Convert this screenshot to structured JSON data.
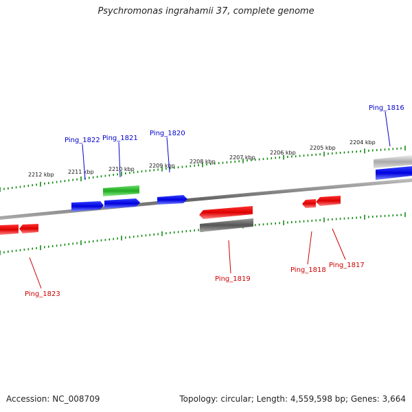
{
  "title": "Psychromonas ingrahamii 37, complete genome",
  "footer": {
    "accession": "Accession: NC_008709",
    "summary": "Topology: circular; Length: 4,559,598 bp; Genes: 3,664"
  },
  "colors": {
    "forward_gene": "#0000dd",
    "reverse_gene": "#ee0000",
    "rna_gene": "#33bb33",
    "other_feature": "#666666",
    "tick": "#118811",
    "backbone": "#888888"
  },
  "scale_labels": [
    "2212 kbp",
    "2211 kbp",
    "2210 kbp",
    "2209 kbp",
    "2208 kbp",
    "2207 kbp",
    "2206 kbp",
    "2205 kbp",
    "2204 kbp"
  ],
  "gene_labels": [
    {
      "text": "Ping_1816",
      "strand": "forward"
    },
    {
      "text": "Ping_1817",
      "strand": "reverse"
    },
    {
      "text": "Ping_1818",
      "strand": "reverse"
    },
    {
      "text": "Ping_1819",
      "strand": "reverse"
    },
    {
      "text": "Ping_1820",
      "strand": "forward"
    },
    {
      "text": "Ping_1821",
      "strand": "forward"
    },
    {
      "text": "Ping_1822",
      "strand": "forward"
    },
    {
      "text": "Ping_1823",
      "strand": "reverse"
    }
  ]
}
